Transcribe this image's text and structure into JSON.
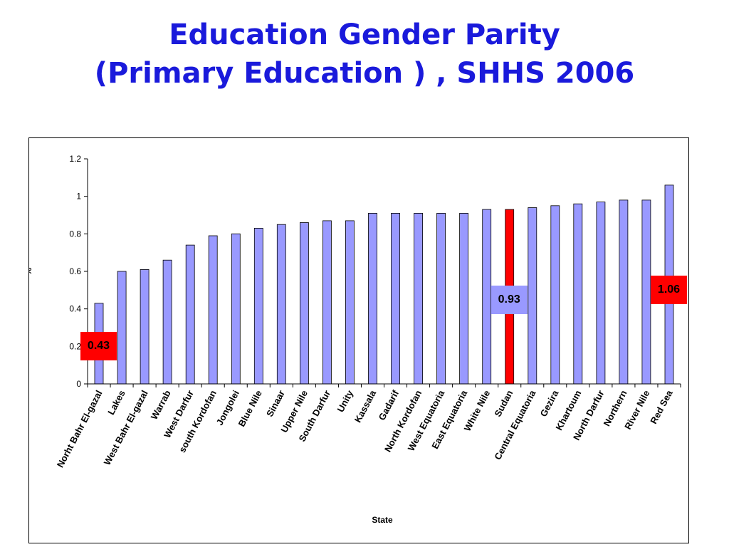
{
  "title": {
    "line1": "Education Gender Parity",
    "line2": "(Primary Education ) , SHHS 2006"
  },
  "chart_data": {
    "type": "bar",
    "categories": [
      "Norht Bahr El-gazal",
      "Lakes",
      "West Bahr El-gazal",
      "Warrab",
      "West Darfur",
      "south Kordofan",
      "Jongolei",
      "Blue Nile",
      "Sinaar",
      "Upper Nile",
      "South Darfur",
      "Unity",
      "Kassala",
      "Gadarif",
      "North Kordofan",
      "West Equatoria",
      "East Equatoria",
      "White Nile",
      "Sudan",
      "Central Equatoria",
      "Gezira",
      "Khartoum",
      "North Darfur",
      "Northern",
      "River Nile",
      "Red Sea"
    ],
    "values": [
      0.43,
      0.6,
      0.61,
      0.66,
      0.74,
      0.79,
      0.8,
      0.83,
      0.85,
      0.86,
      0.87,
      0.87,
      0.91,
      0.91,
      0.91,
      0.91,
      0.91,
      0.93,
      0.93,
      0.94,
      0.95,
      0.96,
      0.97,
      0.98,
      0.98,
      1.06
    ],
    "xlabel": "State",
    "ylabel": "%",
    "ylim": [
      0,
      1.2
    ],
    "yticks": [
      "0",
      "0.2",
      "0.4",
      "0.6",
      "0.8",
      "1",
      "1.2"
    ],
    "grid": false,
    "legend": "none",
    "highlight_category": "Sudan",
    "colors": {
      "bar": "#9999ff",
      "highlight": "#ff0000",
      "callout_red": "#ff0000",
      "callout_blue": "#9999ff"
    },
    "annotations": [
      {
        "label": "0.43",
        "category": "Norht Bahr El-gazal",
        "style": "red"
      },
      {
        "label": "0.93",
        "category": "Sudan",
        "style": "blue"
      },
      {
        "label": "1.06",
        "category": "Red Sea",
        "style": "red"
      }
    ]
  }
}
